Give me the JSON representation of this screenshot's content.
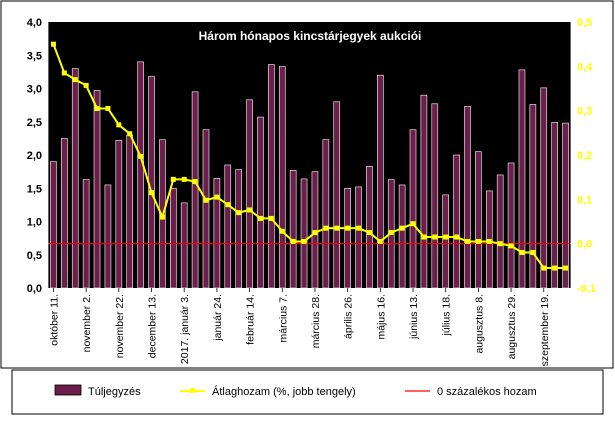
{
  "chart_data": {
    "type": "bar",
    "title": "Három hónapos kincstárjegyek aukciói",
    "colors": {
      "plot_background": "#000000",
      "outer_background": "#ffffff",
      "bar_fill": "#6b1f4a",
      "bar_stroke": "#ffffff",
      "line": "#ffff00",
      "zero_line": "#ff0000",
      "left_axis_text": "#ffffff",
      "right_axis_text": "#ffff00",
      "title_text": "#ffffff"
    },
    "left_axis": {
      "min": 0.0,
      "max": 4.0,
      "ticks": [
        "0,0",
        "0,5",
        "1,0",
        "1,5",
        "2,0",
        "2,5",
        "3,0",
        "3,5",
        "4,0"
      ]
    },
    "right_axis": {
      "min": -0.1,
      "max": 0.5,
      "ticks": [
        "-0,1",
        "0,0",
        "0,1",
        "0,2",
        "0,3",
        "0,4",
        "0,5"
      ]
    },
    "x_tick_labels": [
      {
        "index": 0,
        "label": "október 11."
      },
      {
        "index": 3,
        "label": "november 2."
      },
      {
        "index": 6,
        "label": "november 22."
      },
      {
        "index": 9,
        "label": "december 13."
      },
      {
        "index": 12,
        "label": "2017. január 3."
      },
      {
        "index": 15,
        "label": "január 24."
      },
      {
        "index": 18,
        "label": "február 14."
      },
      {
        "index": 21,
        "label": "március 7."
      },
      {
        "index": 24,
        "label": "március 28."
      },
      {
        "index": 27,
        "label": "április 26."
      },
      {
        "index": 30,
        "label": "május 16."
      },
      {
        "index": 33,
        "label": "június 13."
      },
      {
        "index": 36,
        "label": "július 18."
      },
      {
        "index": 39,
        "label": "augusztus 8."
      },
      {
        "index": 42,
        "label": "augusztus 29."
      },
      {
        "index": 45,
        "label": "szeptember 19."
      }
    ],
    "series": [
      {
        "name": "Túljegyzés",
        "axis": "left",
        "kind": "bar",
        "values": [
          1.9,
          2.25,
          3.3,
          1.63,
          2.97,
          1.55,
          2.22,
          2.3,
          3.4,
          3.18,
          2.23,
          1.5,
          1.28,
          2.95,
          2.38,
          1.65,
          1.85,
          1.78,
          2.83,
          2.57,
          3.36,
          3.33,
          1.77,
          1.64,
          1.75,
          2.23,
          2.8,
          1.5,
          1.52,
          1.83,
          3.2,
          1.63,
          1.55,
          2.38,
          2.9,
          2.77,
          1.4,
          2.0,
          2.73,
          2.05,
          1.46,
          1.7,
          1.88,
          3.28,
          2.76,
          3.01,
          2.49,
          2.48
        ]
      },
      {
        "name": "Átlaghozam (%, jobb tengely)",
        "axis": "right",
        "kind": "line",
        "values": [
          0.45,
          0.385,
          0.37,
          0.357,
          0.305,
          0.305,
          0.268,
          0.248,
          0.197,
          0.115,
          0.06,
          0.145,
          0.145,
          0.14,
          0.098,
          0.105,
          0.088,
          0.07,
          0.076,
          0.057,
          0.057,
          0.028,
          0.005,
          0.005,
          0.025,
          0.035,
          0.035,
          0.035,
          0.035,
          0.025,
          0.005,
          0.025,
          0.035,
          0.045,
          0.015,
          0.015,
          0.015,
          0.015,
          0.005,
          0.005,
          0.005,
          0.0,
          -0.005,
          -0.02,
          -0.02,
          -0.055,
          -0.055,
          -0.055
        ]
      },
      {
        "name": "0 százalékos hozam",
        "axis": "right",
        "kind": "line",
        "values": [
          0.0
        ]
      }
    ],
    "legend": {
      "placement": "bottom",
      "items": [
        {
          "key": "bars",
          "label": "Túljegyzés"
        },
        {
          "key": "line",
          "label": "Átlaghozam (%, jobb tengely)"
        },
        {
          "key": "zero",
          "label": "0 százalékos hozam"
        }
      ]
    }
  }
}
